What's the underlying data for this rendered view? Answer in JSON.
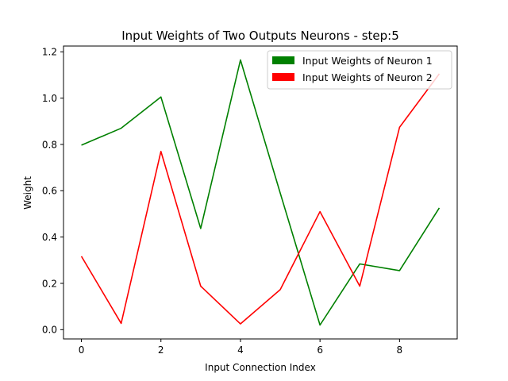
{
  "chart_data": {
    "type": "line",
    "title": "Input Weights of Two Outputs Neurons - step:5",
    "xlabel": "Input Connection Index",
    "ylabel": "Weight",
    "x": [
      0,
      1,
      2,
      3,
      4,
      5,
      6,
      7,
      8,
      9
    ],
    "xlim": [
      -0.45,
      9.45
    ],
    "ylim": [
      -0.04,
      1.225
    ],
    "xticks": [
      0,
      2,
      4,
      6,
      8
    ],
    "yticks": [
      0.0,
      0.2,
      0.4,
      0.6,
      0.8,
      1.0,
      1.2
    ],
    "xtick_labels": [
      "0",
      "2",
      "4",
      "6",
      "8"
    ],
    "ytick_labels": [
      "0.0",
      "0.2",
      "0.4",
      "0.6",
      "0.8",
      "1.0",
      "1.2"
    ],
    "grid": false,
    "legend_position": "top-right",
    "series": [
      {
        "name": "Input Weights of Neuron 1",
        "color": "#008000",
        "values": [
          0.797,
          0.87,
          1.005,
          0.437,
          1.165,
          0.59,
          0.02,
          0.284,
          0.255,
          0.526
        ]
      },
      {
        "name": "Input Weights of Neuron 2",
        "color": "#ff0000",
        "values": [
          0.317,
          0.027,
          0.77,
          0.188,
          0.025,
          0.173,
          0.51,
          0.188,
          0.874,
          1.105
        ]
      }
    ]
  }
}
